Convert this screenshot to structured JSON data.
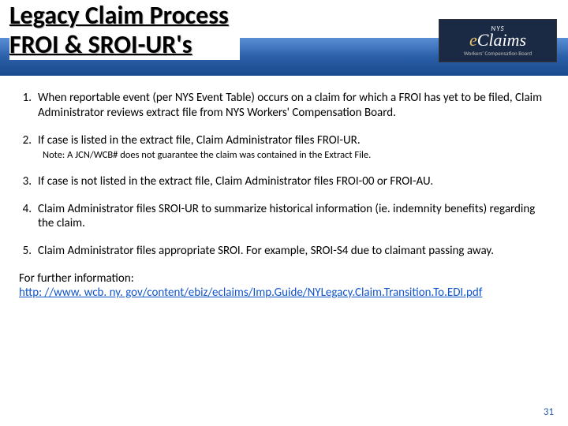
{
  "header": {
    "title_line1": "Legacy Claim Process",
    "title_line2": "FROI & SROI-UR's",
    "logo": {
      "top": "NYS",
      "main_prefix": "e",
      "main_rest": "Claims",
      "sub": "Workers' Compensation Board"
    }
  },
  "items": [
    {
      "num": "1.",
      "text": "When reportable event (per NYS Event Table) occurs on a claim for which a FROI has yet to be filed, Claim Administrator reviews extract file from NYS Workers' Compensation Board.",
      "note": null
    },
    {
      "num": "2.",
      "text": "If case is listed in the extract file, Claim Administrator files FROI-UR.",
      "note": "Note: A JCN/WCB# does not guarantee the claim was contained in the Extract File."
    },
    {
      "num": "3.",
      "text": "If case is not listed in the extract file, Claim Administrator files FROI-00 or FROI-AU.",
      "note": null
    },
    {
      "num": "4.",
      "text": "Claim Administrator files SROI-UR to summarize historical information (ie. indemnity benefits) regarding the claim.",
      "note": null
    },
    {
      "num": "5.",
      "text": "Claim Administrator files appropriate SROI.  For example, SROI-S4 due to claimant passing away.",
      "note": null
    }
  ],
  "footer": {
    "label": "For further information:",
    "link": "http: //www. wcb. ny. gov/content/ebiz/eclaims/Imp.Guide/NYLegacy.Claim.Transition.To.EDI.pdf"
  },
  "page_number": "31"
}
